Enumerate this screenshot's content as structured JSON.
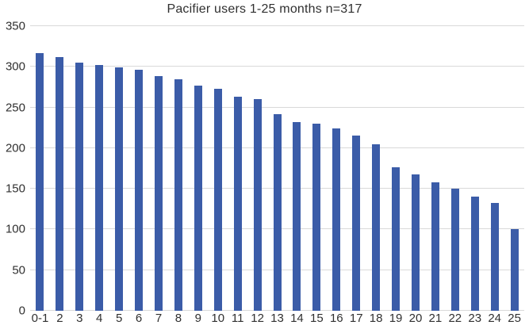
{
  "chart_data": {
    "type": "bar",
    "title": "Pacifier users 1-25 months n=317",
    "categories": [
      "0-1",
      "2",
      "3",
      "4",
      "5",
      "6",
      "7",
      "8",
      "9",
      "10",
      "11",
      "12",
      "13",
      "14",
      "15",
      "16",
      "17",
      "18",
      "19",
      "20",
      "21",
      "22",
      "23",
      "24",
      "25"
    ],
    "values": [
      317,
      312,
      305,
      302,
      299,
      296,
      289,
      285,
      277,
      273,
      263,
      260,
      242,
      232,
      230,
      224,
      215,
      205,
      176,
      168,
      158,
      150,
      140,
      133,
      100
    ],
    "xlabel": "",
    "ylabel": "",
    "ylim": [
      0,
      350
    ],
    "y_ticks": [
      0,
      50,
      100,
      150,
      200,
      250,
      300,
      350
    ],
    "grid": true,
    "legend_position": "none",
    "bar_color": "#3b5ca8",
    "gridline_color": "#d9d9d9",
    "text_color": "#303030"
  }
}
